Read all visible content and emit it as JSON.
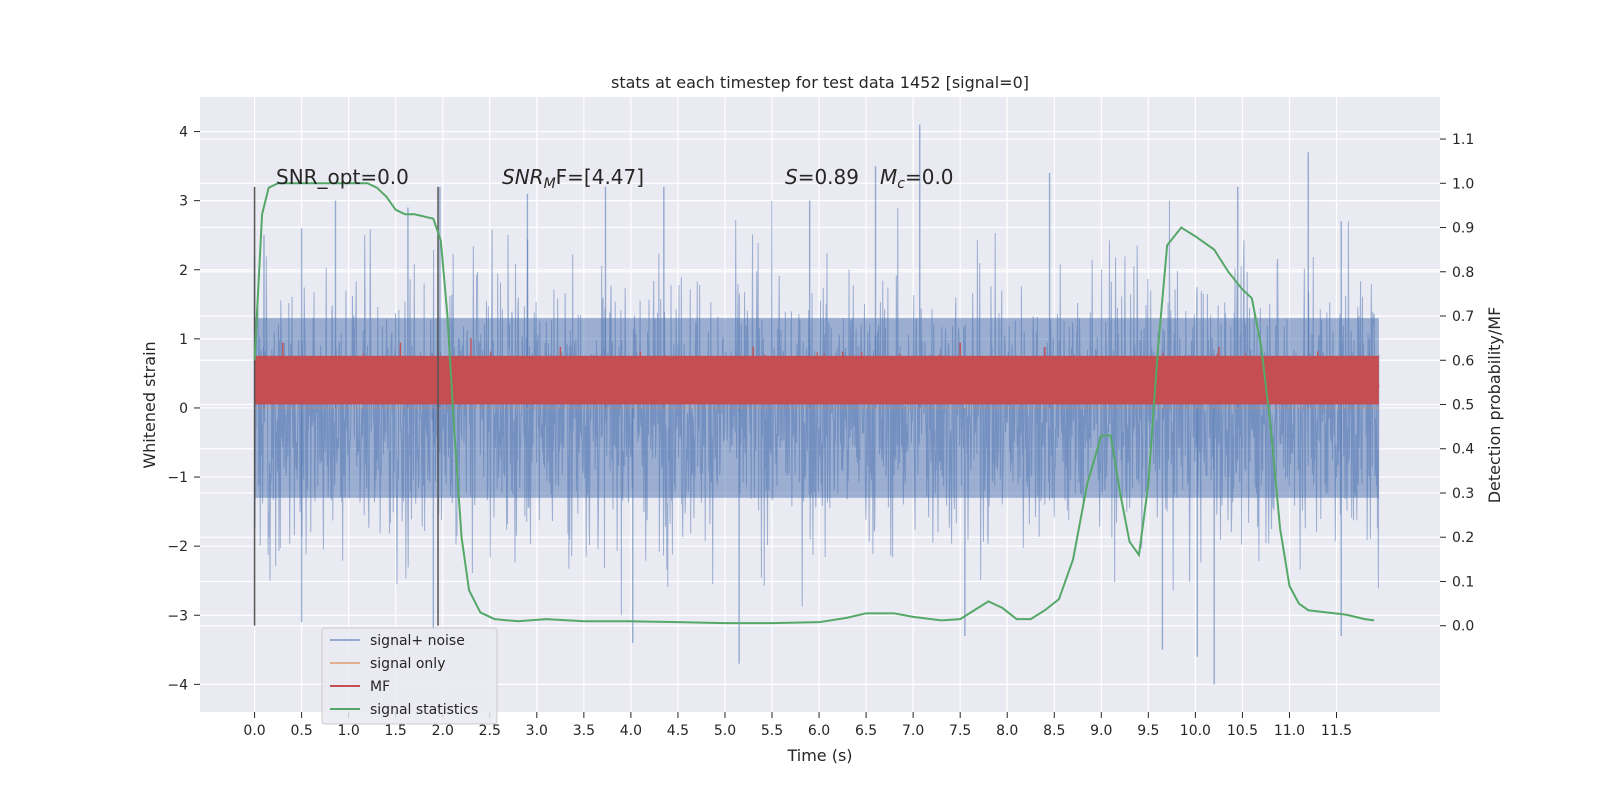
{
  "chart_data": {
    "type": "line",
    "title": "stats at each timestep for test data 1452 [signal=0]",
    "xlabel": "Time (s)",
    "ylabel": "Whitened strain",
    "y2label": "Detection probability/MF",
    "xlim": [
      -0.58,
      12.6
    ],
    "ylim": [
      -4.4,
      4.5
    ],
    "y2lim": [
      -0.195,
      1.195
    ],
    "x_ticks": [
      "0.0",
      "0.5",
      "1.0",
      "1.5",
      "2.0",
      "2.5",
      "3.0",
      "3.5",
      "4.0",
      "4.5",
      "5.0",
      "5.5",
      "6.0",
      "6.5",
      "7.0",
      "7.5",
      "8.0",
      "8.5",
      "9.0",
      "9.5",
      "10.0",
      "10.5",
      "11.0",
      "11.5"
    ],
    "y_ticks": [
      "4",
      "3",
      "2",
      "1",
      "0",
      "−1",
      "−2",
      "−3",
      "−4"
    ],
    "y2_ticks": [
      "1.1",
      "1.0",
      "0.9",
      "0.8",
      "0.7",
      "0.6",
      "0.5",
      "0.4",
      "0.3",
      "0.2",
      "0.1",
      "0.0"
    ],
    "grid": true,
    "legend_position": "lower-left",
    "annotations": {
      "snr_opt": "SNR_opt=0.0",
      "snr_mf_sym": "SNR",
      "snr_mf_sub": "M",
      "snr_mf_rest": "F=[4.47]",
      "s_sym": "S",
      "s_rest": "=0.89",
      "mc_sym": "M",
      "mc_sub": "c",
      "mc_rest": "=0.0"
    },
    "window_markers": [
      0.0,
      1.95
    ],
    "series": [
      {
        "name": "signal+ noise",
        "color": "#4c72b0",
        "axis": "left",
        "x_range": [
          0.0,
          11.95
        ],
        "band": [
          -1.3,
          1.3
        ],
        "peak_samples": [
          {
            "x": 0.0,
            "y": 2.2
          },
          {
            "x": 0.1,
            "y": 2.5
          },
          {
            "x": 0.5,
            "y": 2.6
          },
          {
            "x": 0.86,
            "y": 3.0
          },
          {
            "x": 1.63,
            "y": 2.9
          },
          {
            "x": 1.97,
            "y": 3.2
          },
          {
            "x": 2.9,
            "y": 3.1
          },
          {
            "x": 3.73,
            "y": 3.2
          },
          {
            "x": 4.35,
            "y": 3.2
          },
          {
            "x": 5.9,
            "y": 3.0
          },
          {
            "x": 6.6,
            "y": 3.5
          },
          {
            "x": 7.07,
            "y": 4.1
          },
          {
            "x": 8.45,
            "y": 3.4
          },
          {
            "x": 10.45,
            "y": 3.2
          },
          {
            "x": 11.2,
            "y": 3.7
          },
          {
            "x": 11.55,
            "y": 2.7
          },
          {
            "x": 0.5,
            "y": -3.1
          },
          {
            "x": 1.9,
            "y": -3.2
          },
          {
            "x": 4.02,
            "y": -3.4
          },
          {
            "x": 5.15,
            "y": -3.7
          },
          {
            "x": 7.55,
            "y": -3.3
          },
          {
            "x": 9.65,
            "y": -3.5
          },
          {
            "x": 10.02,
            "y": -3.6
          },
          {
            "x": 10.2,
            "y": -4.0
          },
          {
            "x": 11.55,
            "y": -3.3
          }
        ]
      },
      {
        "name": "signal only",
        "color": "#dd8452",
        "axis": "left",
        "x": [
          0.0,
          11.95
        ],
        "y": [
          0.0,
          0.0
        ]
      },
      {
        "name": "MF",
        "color": "#c44e52",
        "axis": "right",
        "x_range": [
          0.0,
          11.95
        ],
        "band": [
          0.5,
          0.61
        ],
        "peaks": [
          {
            "x": 0.3,
            "y": 0.64
          },
          {
            "x": 1.55,
            "y": 0.64
          },
          {
            "x": 2.3,
            "y": 0.65
          },
          {
            "x": 3.25,
            "y": 0.63
          },
          {
            "x": 4.1,
            "y": 0.62
          },
          {
            "x": 5.3,
            "y": 0.63
          },
          {
            "x": 6.25,
            "y": 0.62
          },
          {
            "x": 7.5,
            "y": 0.64
          },
          {
            "x": 8.4,
            "y": 0.63
          },
          {
            "x": 9.15,
            "y": 0.61
          },
          {
            "x": 10.25,
            "y": 0.63
          },
          {
            "x": 11.3,
            "y": 0.62
          }
        ]
      },
      {
        "name": "signal statistics",
        "color": "#55a868",
        "axis": "right",
        "x": [
          0.0,
          0.08,
          0.15,
          0.25,
          0.4,
          0.8,
          1.2,
          1.3,
          1.4,
          1.5,
          1.6,
          1.7,
          1.9,
          1.98,
          2.05,
          2.12,
          2.2,
          2.28,
          2.4,
          2.55,
          2.8,
          3.1,
          3.5,
          4.0,
          4.5,
          5.0,
          5.5,
          6.0,
          6.3,
          6.5,
          6.8,
          7.0,
          7.3,
          7.5,
          7.65,
          7.8,
          7.95,
          8.1,
          8.25,
          8.4,
          8.55,
          8.7,
          8.85,
          9.0,
          9.1,
          9.2,
          9.3,
          9.4,
          9.5,
          9.6,
          9.7,
          9.85,
          10.0,
          10.2,
          10.35,
          10.5,
          10.6,
          10.7,
          10.8,
          10.9,
          11.0,
          11.1,
          11.2,
          11.4,
          11.6,
          11.8,
          11.9
        ],
        "y": [
          0.6,
          0.93,
          0.99,
          1.0,
          1.0,
          1.0,
          1.0,
          0.99,
          0.97,
          0.94,
          0.93,
          0.93,
          0.92,
          0.87,
          0.7,
          0.45,
          0.2,
          0.08,
          0.03,
          0.015,
          0.01,
          0.015,
          0.01,
          0.01,
          0.008,
          0.006,
          0.006,
          0.008,
          0.018,
          0.028,
          0.028,
          0.02,
          0.012,
          0.015,
          0.035,
          0.055,
          0.04,
          0.015,
          0.015,
          0.035,
          0.06,
          0.15,
          0.32,
          0.43,
          0.43,
          0.3,
          0.19,
          0.16,
          0.32,
          0.62,
          0.86,
          0.9,
          0.88,
          0.85,
          0.8,
          0.76,
          0.74,
          0.63,
          0.45,
          0.22,
          0.09,
          0.05,
          0.035,
          0.03,
          0.025,
          0.015,
          0.012
        ]
      }
    ]
  }
}
